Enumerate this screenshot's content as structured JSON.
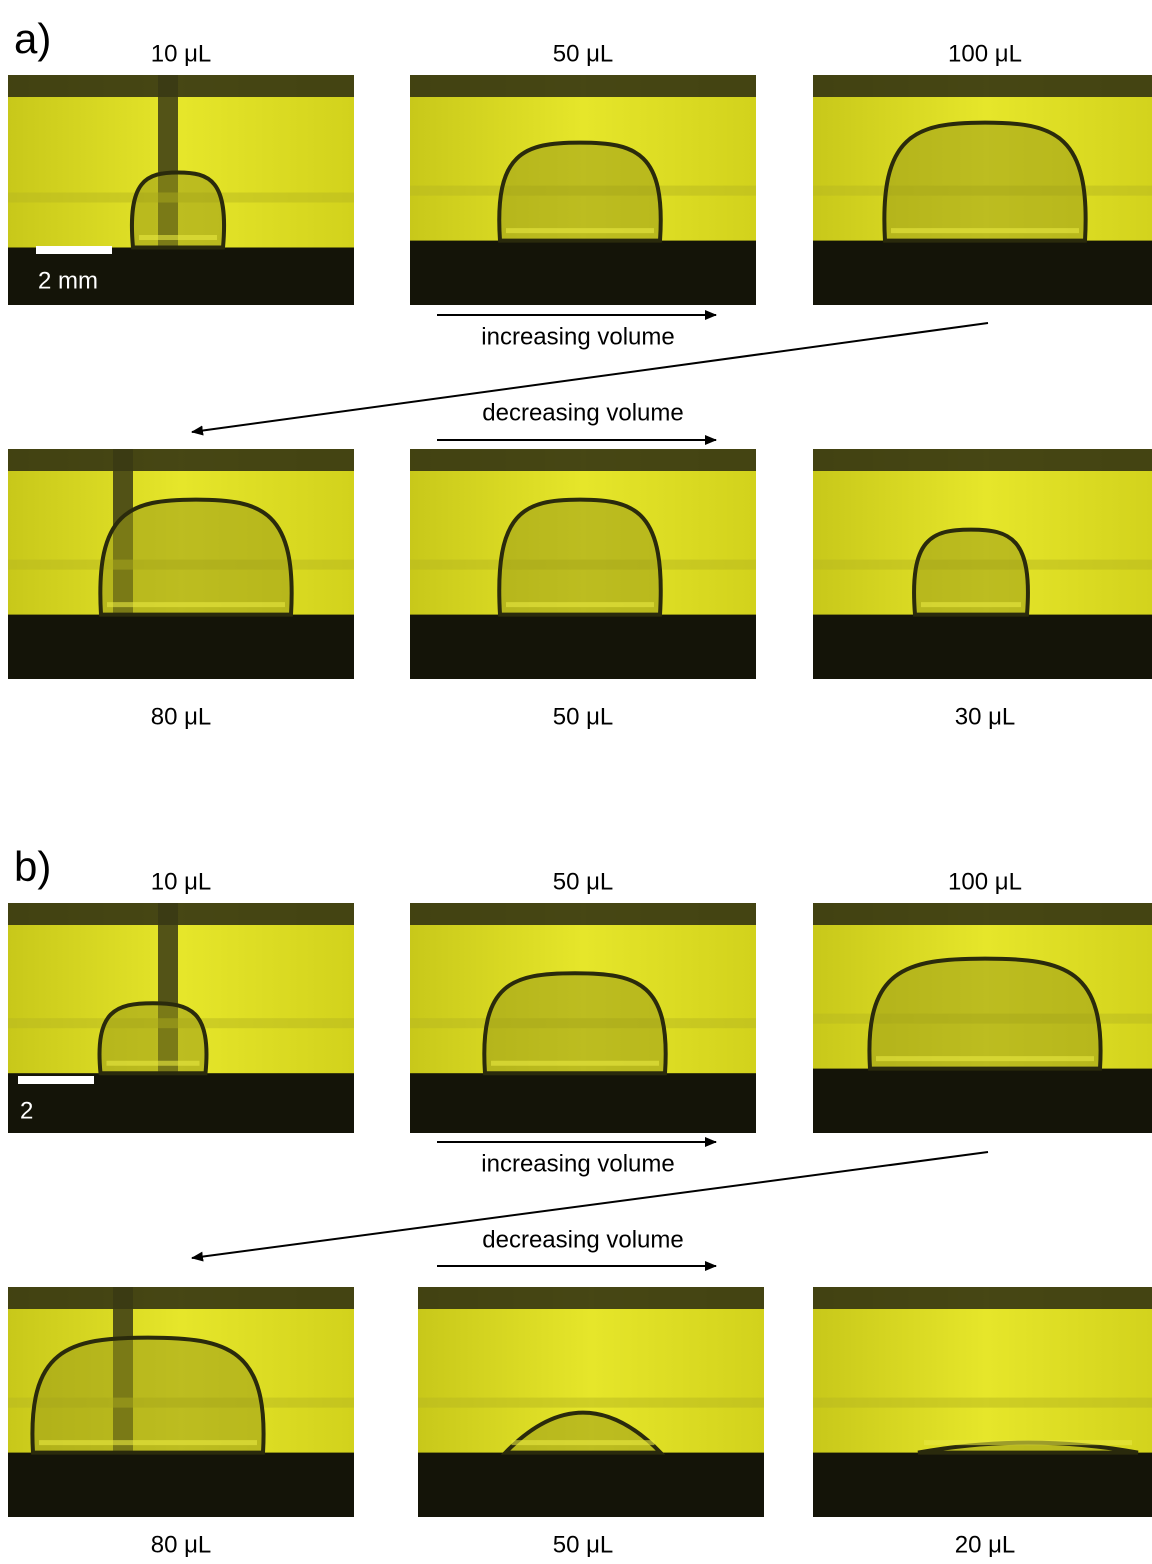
{
  "panels": [
    {
      "label": "a)",
      "top_labels": [
        "10 μL",
        "50 μL",
        "100 μL"
      ],
      "increasing_label": "increasing volume",
      "decreasing_label": "decreasing volume",
      "bottom_labels": [
        "80 μL",
        "50 μL",
        "30 μL"
      ],
      "scale_bar": "2 mm"
    },
    {
      "label": "b)",
      "top_labels": [
        "10 μL",
        "50 μL",
        "100 μL"
      ],
      "increasing_label": "increasing volume",
      "decreasing_label": "decreasing volume",
      "bottom_labels": [
        "80 μL",
        "50 μL",
        "20 μL"
      ],
      "scale_bar": "2"
    }
  ]
}
